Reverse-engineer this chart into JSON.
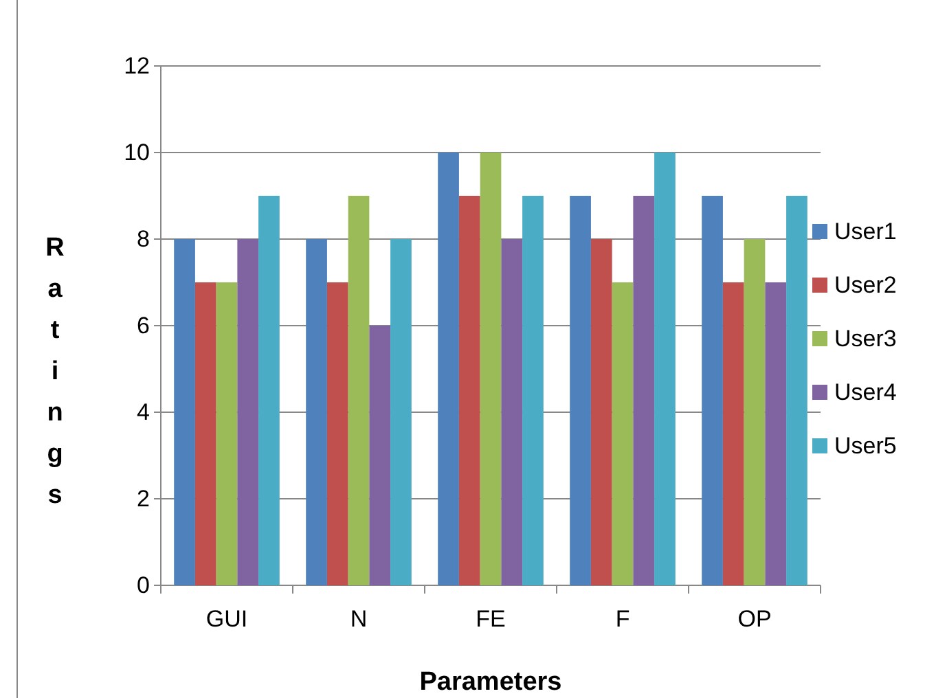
{
  "chart_data": {
    "type": "bar",
    "xlabel": "Parameters",
    "ylabel": "Ratings",
    "categories": [
      "GUI",
      "N",
      "FE",
      "F",
      "OP"
    ],
    "series": [
      {
        "name": "User1",
        "color": "#4f81bd",
        "values": [
          8,
          8,
          10,
          9,
          9
        ]
      },
      {
        "name": "User2",
        "color": "#c0504d",
        "values": [
          7,
          7,
          9,
          8,
          7
        ]
      },
      {
        "name": "User3",
        "color": "#9bbb59",
        "values": [
          7,
          9,
          10,
          7,
          8
        ]
      },
      {
        "name": "User4",
        "color": "#8064a2",
        "values": [
          8,
          6,
          8,
          9,
          7
        ]
      },
      {
        "name": "User5",
        "color": "#4bacc6",
        "values": [
          9,
          8,
          9,
          10,
          9
        ]
      }
    ],
    "ylim": [
      0,
      12
    ],
    "yticks": [
      0,
      2,
      4,
      6,
      8,
      10,
      12
    ],
    "grid": "y",
    "legend": "right"
  }
}
